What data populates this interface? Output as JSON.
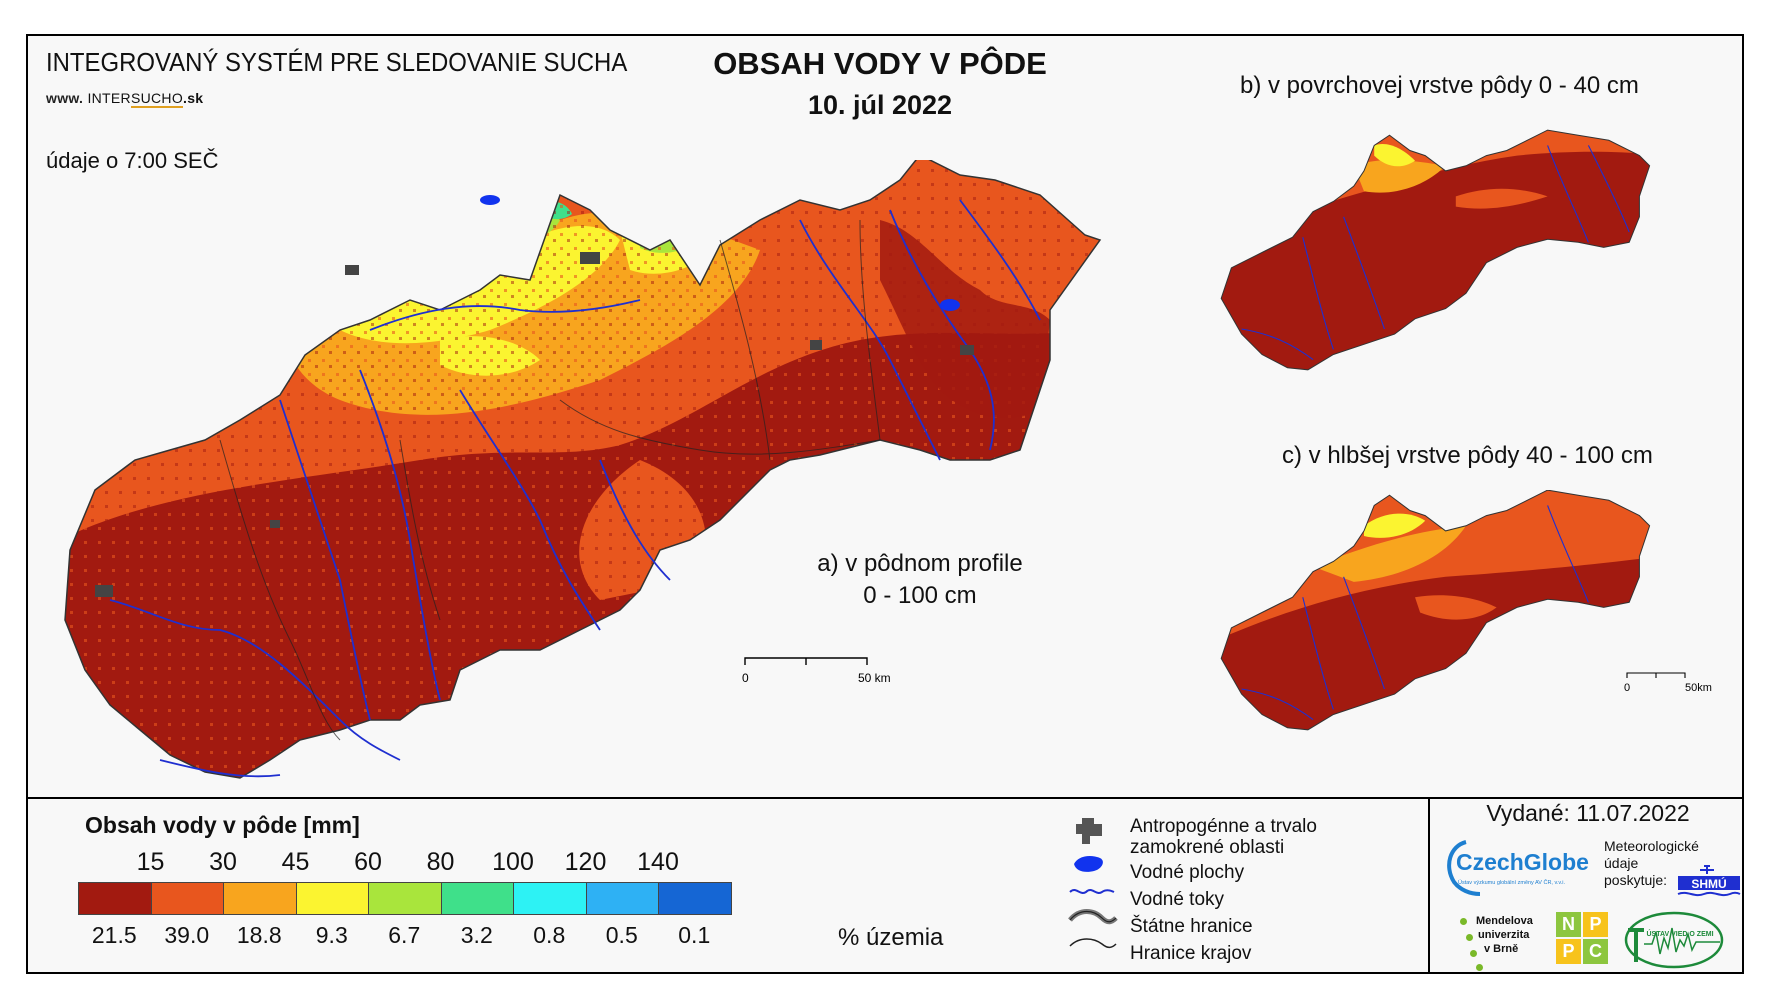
{
  "header": {
    "system_title": "INTEGROVANÝ SYSTÉM PRE SLEDOVANIE SUCHA",
    "website_prefix": "www.",
    "website_part1": "INTER",
    "website_part2": "SUCHO",
    "website_suffix": ".sk",
    "data_time": "údaje o 7:00 SEČ",
    "main_title": "OBSAH VODY V PÔDE",
    "date": "10. júl 2022"
  },
  "maps": {
    "a_label_line1": "a) v pôdnom profile",
    "a_label_line2": "0 - 100 cm",
    "b_label": "b) v povrchovej vrstve pôdy 0 - 40 cm",
    "c_label": "c) v hlbšej vrstve pôdy 40 - 100 cm",
    "scale_zero": "0",
    "scale_main": "50 km",
    "scale_small": "50km"
  },
  "legend": {
    "title": "Obsah vody v pôde  [mm]",
    "thresholds": [
      "15",
      "30",
      "45",
      "60",
      "80",
      "100",
      "120",
      "140"
    ],
    "classes": [
      {
        "color": "#a21a10",
        "percent": "21.5"
      },
      {
        "color": "#e8561e",
        "percent": "39.0"
      },
      {
        "color": "#f8a51e",
        "percent": "18.8"
      },
      {
        "color": "#fbf430",
        "percent": "9.3"
      },
      {
        "color": "#a9e53c",
        "percent": "6.7"
      },
      {
        "color": "#3fe08a",
        "percent": "3.2"
      },
      {
        "color": "#2df2f4",
        "percent": "0.8"
      },
      {
        "color": "#2eb1f4",
        "percent": "0.5"
      },
      {
        "color": "#1566d4",
        "percent": "0.1"
      }
    ],
    "percent_label": "% územia"
  },
  "symbol_legend": {
    "items": [
      {
        "icon": "anthropogenic-area-icon",
        "label": "Antropogénne a trvalo\nzamokrené oblasti"
      },
      {
        "icon": "water-body-icon",
        "label": "Vodné plochy"
      },
      {
        "icon": "river-icon",
        "label": "Vodné toky"
      },
      {
        "icon": "state-border-icon",
        "label": "Štátne hranice"
      },
      {
        "icon": "region-border-icon",
        "label": "Hranice krajov"
      }
    ]
  },
  "footer": {
    "issued": "Vydané: 11.07.2022",
    "czechglobe": "CzechGlobe",
    "czechglobe_sub": "Ústav výzkumu globální změny AV ČR, v.v.i.",
    "meteo_line1": "Meteorologické",
    "meteo_line2": "údaje",
    "meteo_line3": "poskytuje:",
    "shmu": "SHMÚ",
    "mendel_line1": "Mendelova",
    "mendel_line2": "univerzita",
    "mendel_line3": "v Brně",
    "nppc_letters": [
      "N",
      "P",
      "P",
      "C"
    ],
    "uvz_text": "ÚSTAV VIED O ZEMI"
  },
  "colors": {
    "accent_blue": "#1f2fd0",
    "czechglobe_blue": "#1e7fd0",
    "nppc_green": "#8dc63f",
    "nppc_yellow": "#f7c31c"
  }
}
